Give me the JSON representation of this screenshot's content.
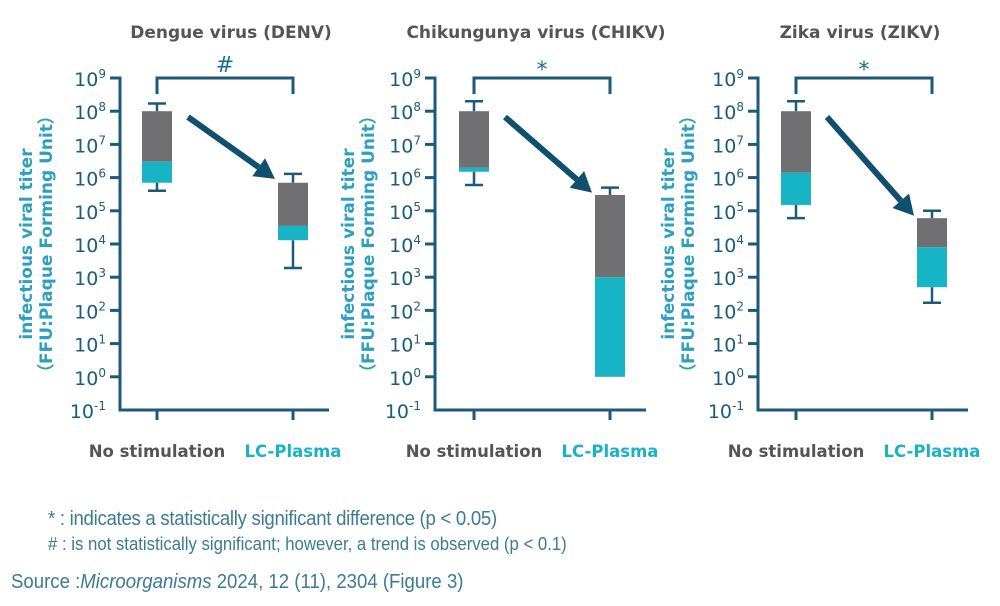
{
  "chart_data": [
    {
      "type": "boxplot",
      "title": "Dengue virus (DENV)",
      "ylabel_line1": "infectious viral titer",
      "ylabel_line2": "（FFU:Plaque Forming Unit）",
      "yscale": "log",
      "ylim": [
        0.1,
        1000000000
      ],
      "ytick_exponents": [
        9,
        8,
        7,
        6,
        5,
        4,
        3,
        2,
        1,
        0,
        -1
      ],
      "categories": [
        "No stimulation",
        "LC-Plasma"
      ],
      "significance_marker": "#",
      "boxes": [
        {
          "category": "No stimulation",
          "whisker_high": 170000000,
          "q3": 100000000,
          "median": 3000000,
          "q1": 700000,
          "whisker_low": 400000
        },
        {
          "category": "LC-Plasma",
          "whisker_high": 1300000,
          "q3": 700000,
          "median": 35000,
          "q1": 13000,
          "whisker_low": 1900
        }
      ]
    },
    {
      "type": "boxplot",
      "title": "Chikungunya  virus (CHIKV)",
      "ylabel_line1": "infectious viral titer",
      "ylabel_line2": "（FFU:Plaque Forming Unit）",
      "yscale": "log",
      "ylim": [
        0.1,
        1000000000
      ],
      "ytick_exponents": [
        9,
        8,
        7,
        6,
        5,
        4,
        3,
        2,
        1,
        0,
        -1
      ],
      "categories": [
        "No stimulation",
        "LC-Plasma"
      ],
      "significance_marker": "*",
      "boxes": [
        {
          "category": "No stimulation",
          "whisker_high": 200000000,
          "q3": 100000000,
          "median": 2000000,
          "q1": 1500000,
          "whisker_low": 600000
        },
        {
          "category": "LC-Plasma",
          "whisker_high": 500000,
          "q3": 300000,
          "median": 1000,
          "q1": 1,
          "whisker_low": 1
        }
      ]
    },
    {
      "type": "boxplot",
      "title": "Zika virus (ZIKV)",
      "ylabel_line1": "infectious viral titer",
      "ylabel_line2": "（FFU:Plaque Forming Unit）",
      "yscale": "log",
      "ylim": [
        0.1,
        1000000000
      ],
      "ytick_exponents": [
        9,
        8,
        7,
        6,
        5,
        4,
        3,
        2,
        1,
        0,
        -1
      ],
      "categories": [
        "No stimulation",
        "LC-Plasma"
      ],
      "significance_marker": "*",
      "boxes": [
        {
          "category": "No stimulation",
          "whisker_high": 200000000,
          "q3": 100000000,
          "median": 1400000,
          "q1": 150000,
          "whisker_low": 60000
        },
        {
          "category": "LC-Plasma",
          "whisker_high": 100000,
          "q3": 60000,
          "median": 8000,
          "q1": 500,
          "whisker_low": 170
        }
      ]
    }
  ],
  "colors": {
    "upper_box": "#707072",
    "lower_box": "#17b4c6",
    "axis": "#1b5a78",
    "arrow": "#114f6e",
    "title": "#555557",
    "ylabel": "#2e9fc0",
    "category_no_stim": "#555557",
    "category_lc": "#1ab3c6"
  },
  "notes": {
    "star": "* : indicates a statistically significant difference (p < 0.05)",
    "hash": "# : is not statistically significant; however, a trend is observed (p < 0.1)"
  },
  "source": {
    "prefix": "Source :",
    "journal": "Microorganisms",
    "citation": " 2024, 12 (11), 2304 (Figure 3)"
  }
}
